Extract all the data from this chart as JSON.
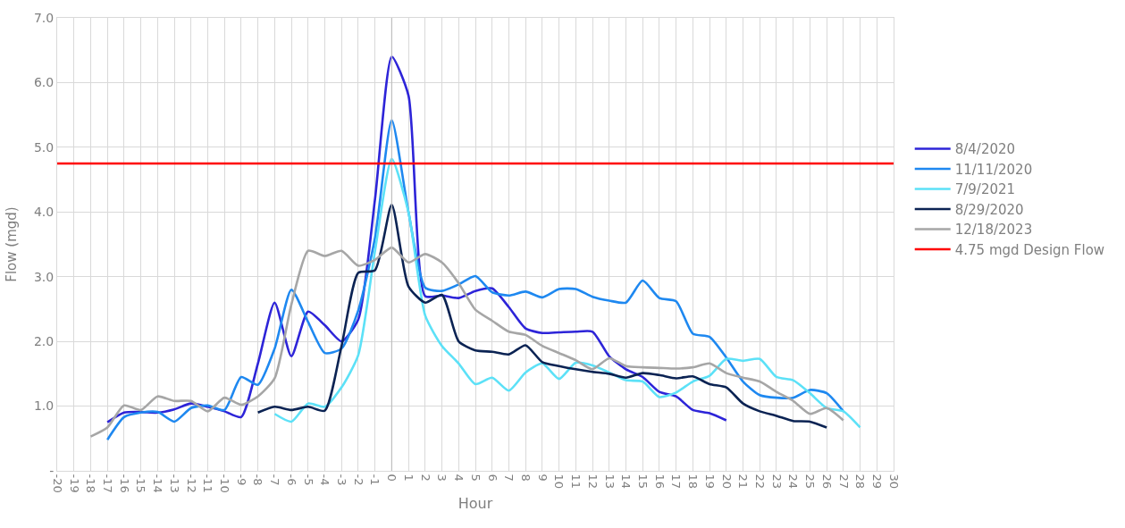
{
  "chart_data": {
    "type": "line",
    "xlabel": "Hour",
    "ylabel": "Flow (mgd)",
    "xlim": [
      -20,
      30
    ],
    "xticks": [
      -20,
      -19,
      -18,
      -17,
      -16,
      -15,
      -14,
      -13,
      -12,
      -11,
      -10,
      -9,
      -8,
      -7,
      -6,
      -5,
      -4,
      -3,
      -2,
      -1,
      0,
      1,
      2,
      3,
      4,
      5,
      6,
      7,
      8,
      9,
      10,
      11,
      12,
      13,
      14,
      15,
      16,
      17,
      18,
      19,
      20,
      21,
      22,
      23,
      24,
      25,
      26,
      27,
      28,
      29,
      30
    ],
    "ylim": [
      0,
      7
    ],
    "yticks": [
      {
        "value": 0,
        "label": "-"
      },
      {
        "value": 1,
        "label": "1.0"
      },
      {
        "value": 2,
        "label": "2.0"
      },
      {
        "value": 3,
        "label": "3.0"
      },
      {
        "value": 4,
        "label": "4.0"
      },
      {
        "value": 5,
        "label": "5.0"
      },
      {
        "value": 6,
        "label": "6.0"
      },
      {
        "value": 7,
        "label": "7.0"
      }
    ],
    "grid": true,
    "legend": "right",
    "marker": "none",
    "line_style": "solid",
    "series": [
      {
        "name": "8/4/2020",
        "color": "#2d24d8",
        "x": [
          -17,
          -16,
          -15,
          -14,
          -13,
          -12,
          -11,
          -10,
          -9,
          -8,
          -7,
          -6,
          -5,
          -4,
          -3,
          -2,
          -1,
          0,
          1,
          2,
          3,
          4,
          5,
          6,
          7,
          8,
          9,
          10,
          11,
          12,
          13,
          14,
          15,
          16,
          17,
          18,
          19,
          20
        ],
        "values": [
          0.75,
          0.9,
          0.91,
          0.9,
          0.95,
          1.04,
          0.99,
          0.92,
          0.83,
          1.66,
          2.6,
          1.77,
          2.46,
          2.25,
          2.0,
          2.34,
          4.2,
          6.4,
          5.8,
          2.7,
          2.71,
          2.67,
          2.78,
          2.82,
          2.53,
          2.2,
          2.13,
          2.14,
          2.15,
          2.15,
          1.77,
          1.57,
          1.45,
          1.22,
          1.15,
          0.94,
          0.89,
          0.78
        ]
      },
      {
        "name": "11/11/2020",
        "color": "#1e88f0",
        "x": [
          -17,
          -16,
          -15,
          -14,
          -13,
          -12,
          -11,
          -10,
          -9,
          -8,
          -7,
          -6,
          -5,
          -4,
          -3,
          -2,
          -1,
          0,
          1,
          2,
          3,
          4,
          5,
          6,
          7,
          8,
          9,
          10,
          11,
          12,
          13,
          14,
          15,
          16,
          17,
          18,
          19,
          20,
          21,
          22,
          23,
          24,
          25,
          26,
          27
        ],
        "values": [
          0.48,
          0.83,
          0.9,
          0.91,
          0.76,
          0.97,
          1.01,
          0.94,
          1.45,
          1.33,
          1.89,
          2.8,
          2.3,
          1.82,
          1.89,
          2.48,
          3.6,
          5.42,
          4.0,
          2.83,
          2.78,
          2.88,
          3.01,
          2.76,
          2.71,
          2.77,
          2.68,
          2.81,
          2.81,
          2.69,
          2.63,
          2.6,
          2.94,
          2.67,
          2.62,
          2.12,
          2.07,
          1.75,
          1.38,
          1.17,
          1.13,
          1.13,
          1.25,
          1.2,
          0.92
        ]
      },
      {
        "name": "7/9/2021",
        "color": "#5ce1f7",
        "x": [
          -7,
          -6,
          -5,
          -4,
          -3,
          -2,
          -1,
          0,
          1,
          2,
          3,
          4,
          5,
          6,
          7,
          8,
          9,
          10,
          11,
          12,
          13,
          14,
          15,
          16,
          17,
          18,
          19,
          20,
          21,
          22,
          23,
          24,
          25,
          26,
          27,
          28
        ],
        "values": [
          0.88,
          0.76,
          1.04,
          0.99,
          1.29,
          1.79,
          3.4,
          4.82,
          4.0,
          2.4,
          1.93,
          1.66,
          1.34,
          1.44,
          1.24,
          1.52,
          1.66,
          1.42,
          1.67,
          1.63,
          1.52,
          1.4,
          1.38,
          1.14,
          1.21,
          1.38,
          1.47,
          1.73,
          1.7,
          1.73,
          1.45,
          1.4,
          1.2,
          0.97,
          0.92,
          0.67
        ]
      },
      {
        "name": "8/29/2020",
        "color": "#0b2353",
        "x": [
          -8,
          -7,
          -6,
          -5,
          -4,
          -3,
          -2,
          -1,
          0,
          1,
          2,
          3,
          4,
          5,
          6,
          7,
          8,
          9,
          10,
          11,
          12,
          13,
          14,
          15,
          16,
          17,
          18,
          19,
          20,
          21,
          22,
          23,
          24,
          25,
          26
        ],
        "values": [
          0.9,
          0.99,
          0.94,
          0.99,
          0.93,
          1.93,
          3.06,
          3.1,
          4.11,
          2.85,
          2.6,
          2.72,
          2.0,
          1.86,
          1.84,
          1.8,
          1.94,
          1.68,
          1.62,
          1.57,
          1.53,
          1.5,
          1.44,
          1.51,
          1.48,
          1.43,
          1.46,
          1.34,
          1.29,
          1.04,
          0.92,
          0.85,
          0.77,
          0.76,
          0.67
        ]
      },
      {
        "name": "12/18/2023",
        "color": "#a6a6a6",
        "x": [
          -18,
          -17,
          -16,
          -15,
          -14,
          -13,
          -12,
          -11,
          -10,
          -9,
          -8,
          -7,
          -6,
          -5,
          -4,
          -3,
          -2,
          -1,
          0,
          1,
          2,
          3,
          4,
          5,
          6,
          7,
          8,
          9,
          10,
          11,
          12,
          13,
          14,
          15,
          16,
          17,
          18,
          19,
          20,
          21,
          22,
          23,
          24,
          25,
          26,
          27
        ],
        "values": [
          0.53,
          0.67,
          1.01,
          0.94,
          1.15,
          1.08,
          1.08,
          0.92,
          1.13,
          1.02,
          1.15,
          1.43,
          2.57,
          3.4,
          3.32,
          3.4,
          3.17,
          3.26,
          3.45,
          3.22,
          3.35,
          3.22,
          2.9,
          2.49,
          2.32,
          2.15,
          2.1,
          1.93,
          1.82,
          1.71,
          1.57,
          1.74,
          1.62,
          1.6,
          1.59,
          1.58,
          1.6,
          1.66,
          1.51,
          1.44,
          1.38,
          1.22,
          1.08,
          0.88,
          0.97,
          0.78
        ]
      }
    ],
    "ref_lines": [
      {
        "axis": "x",
        "value": 0,
        "color": "#bfbfbf"
      },
      {
        "axis": "y",
        "value": 4.75,
        "label": "4.75 mgd Design Flow",
        "color": "#ff0000"
      }
    ]
  }
}
